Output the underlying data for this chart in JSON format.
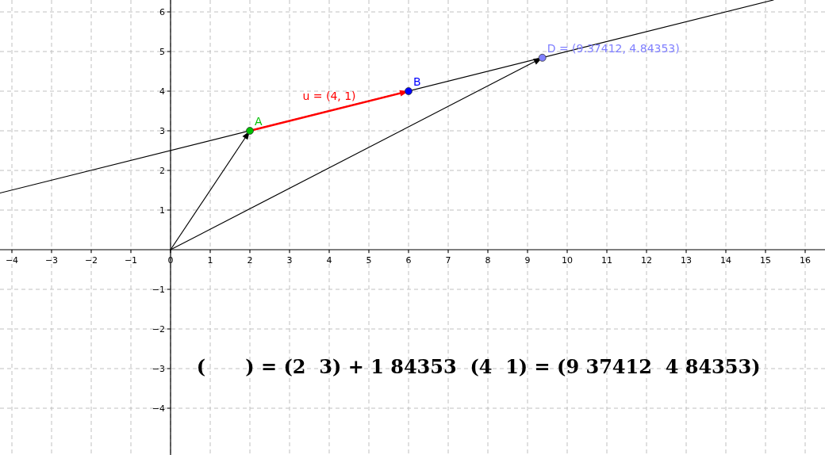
{
  "chart_data": {
    "type": "line",
    "xlim": [
      -4.3,
      16.5
    ],
    "ylim": [
      -5.18,
      6.3
    ],
    "xticks": [
      -4,
      -3,
      -2,
      -1,
      0,
      1,
      2,
      3,
      4,
      5,
      6,
      7,
      8,
      9,
      10,
      11,
      12,
      13,
      14,
      15,
      16
    ],
    "yticks": [
      -4,
      -3,
      -2,
      -1,
      1,
      2,
      3,
      4,
      5,
      6
    ],
    "grid": true,
    "series": [
      {
        "color": "#000000",
        "x": [
          -4.3,
          15.2
        ],
        "values": [
          1.43,
          6.3
        ],
        "marker": "none"
      },
      {
        "color": "#000000",
        "x": [
          0,
          2
        ],
        "values": [
          0,
          3
        ]
      },
      {
        "color": "#000000",
        "x": [
          0,
          9.37412
        ],
        "values": [
          0,
          4.84353
        ]
      },
      {
        "name": "u = (4, 1)",
        "color": "#ff0000",
        "x": [
          2,
          6
        ],
        "values": [
          3,
          4
        ]
      },
      {
        "type": "scatter",
        "name": "A",
        "color": "#00c000",
        "x": [
          2
        ],
        "values": [
          3
        ],
        "marker": "circle"
      },
      {
        "type": "scatter",
        "name": "B",
        "color": "#0000ff",
        "x": [
          6
        ],
        "values": [
          4
        ],
        "marker": "circle"
      },
      {
        "type": "scatter",
        "name": "D = (9.37412, 4.84353)",
        "color": "#8080ff",
        "x": [
          9.37412
        ],
        "values": [
          4.84353
        ],
        "marker": "circle"
      }
    ],
    "annotations": [
      "(      ) = (2  3) + 1 84353  (4  1) = (9 37412  4 84353)"
    ]
  }
}
